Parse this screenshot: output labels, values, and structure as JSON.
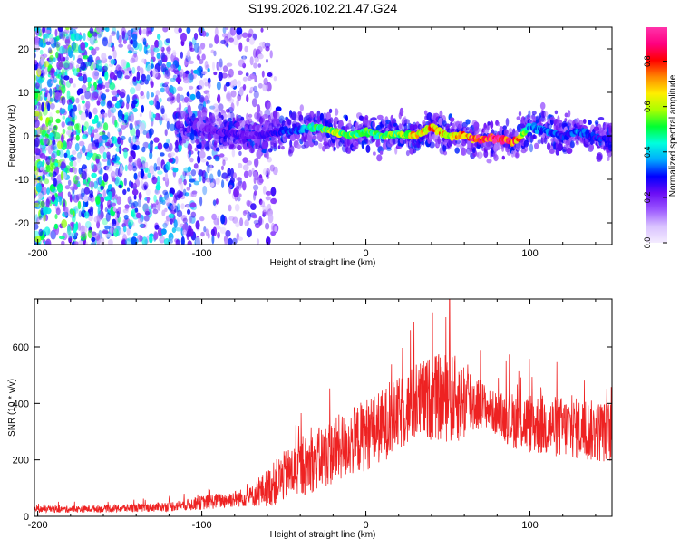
{
  "title": "S199.2026.102.21.47.G24",
  "colors": {
    "snr_line": "#ee2222",
    "colormap": [
      "#f4ecff",
      "#d9c2ff",
      "#9b57ff",
      "#6a0cf5",
      "#0000ff",
      "#00aaff",
      "#00ffdd",
      "#00ff33",
      "#aaff00",
      "#ffee00",
      "#ff8800",
      "#ff0000",
      "#ff0080",
      "#ff33aa"
    ]
  },
  "chart_data": [
    {
      "type": "heatmap",
      "xlabel": "Height of straight line (km)",
      "ylabel": "Frequency (Hz)",
      "xlim": [
        -202,
        150
      ],
      "ylim": [
        -25,
        25
      ],
      "xticks": [
        -200,
        -100,
        0,
        100
      ],
      "xtick_labels": [
        "-200",
        "-100",
        "0",
        "100"
      ],
      "yticks": [
        -20,
        -10,
        0,
        10,
        20
      ],
      "ytick_labels": [
        "-20",
        "-10",
        "0",
        "10",
        "20"
      ],
      "colorbar": {
        "label": "Normalized spectral amplitude",
        "range": [
          0,
          0.95
        ],
        "ticks": [
          0,
          0.2,
          0.4,
          0.6,
          0.8
        ],
        "tick_labels": [
          "0.0",
          "0.2",
          "0.4",
          "0.6",
          "0.8"
        ]
      },
      "ridge": {
        "x": [
          -100,
          -90,
          -80,
          -70,
          -60,
          -50,
          -40,
          -30,
          -20,
          -10,
          0,
          10,
          20,
          30,
          40,
          50,
          60,
          70,
          80,
          90,
          100,
          110,
          120,
          130,
          140,
          150
        ],
        "y": [
          2,
          1,
          0.5,
          0,
          0.5,
          1,
          1.5,
          2,
          1,
          0,
          1,
          0,
          0.5,
          0,
          2,
          0,
          0,
          -1,
          -0.5,
          -1.5,
          2,
          1,
          0,
          1,
          -0.5,
          -1
        ],
        "peak_amplitude": [
          0.2,
          0.25,
          0.25,
          0.2,
          0.25,
          0.3,
          0.35,
          0.5,
          0.6,
          0.6,
          0.55,
          0.55,
          0.6,
          0.7,
          0.75,
          0.7,
          0.75,
          0.9,
          0.95,
          0.85,
          0.4,
          0.35,
          0.3,
          0.35,
          0.3,
          0.3
        ]
      },
      "noise_region": {
        "x": [
          -202,
          -65
        ],
        "amplitude": 0.1
      }
    },
    {
      "type": "line",
      "xlabel": "Height of straight line (km)",
      "ylabel": "SNR (10 * v/v)",
      "xlim": [
        -202,
        150
      ],
      "ylim": [
        0,
        770
      ],
      "xticks": [
        -200,
        -100,
        0,
        100
      ],
      "xtick_labels": [
        "-200",
        "-100",
        "0",
        "100"
      ],
      "yticks": [
        0,
        200,
        400,
        600
      ],
      "ytick_labels": [
        "0",
        "200",
        "400",
        "600"
      ],
      "series": [
        {
          "x": [
            -202,
            -190,
            -180,
            -170,
            -160,
            -150,
            -140,
            -130,
            -120,
            -110,
            -100,
            -90,
            -80,
            -70,
            -60,
            -50,
            -40,
            -30,
            -20,
            -10,
            0,
            10,
            20,
            30,
            40,
            50,
            60,
            70,
            75,
            80,
            90,
            100,
            110,
            120,
            130,
            140,
            150
          ],
          "y": [
            25,
            25,
            25,
            26,
            27,
            28,
            30,
            32,
            35,
            40,
            48,
            55,
            62,
            70,
            100,
            140,
            170,
            200,
            230,
            260,
            290,
            320,
            360,
            400,
            420,
            420,
            410,
            400,
            380,
            360,
            340,
            330,
            320,
            315,
            310,
            300,
            300
          ],
          "noise_amplitude": [
            12,
            12,
            12,
            12,
            13,
            14,
            15,
            16,
            18,
            20,
            25,
            28,
            30,
            35,
            70,
            90,
            100,
            110,
            120,
            120,
            130,
            130,
            130,
            140,
            150,
            160,
            150,
            90,
            70,
            80,
            100,
            110,
            110,
            110,
            110,
            110,
            110
          ],
          "max_y": 775,
          "max_x": 51
        }
      ]
    }
  ]
}
